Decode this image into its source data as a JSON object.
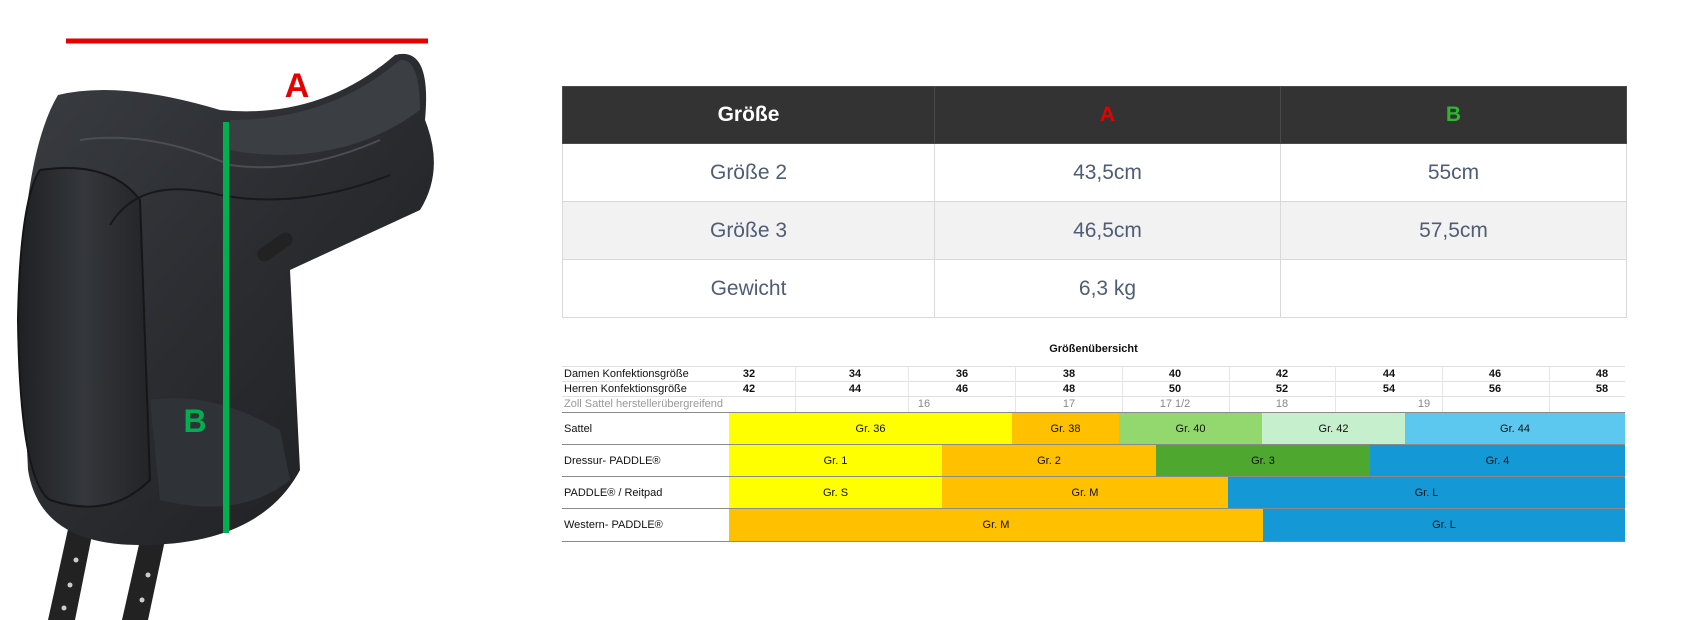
{
  "figure": {
    "label_a": "A",
    "label_b": "B",
    "marker_colors": {
      "a": "#e60000",
      "b": "#00b050"
    }
  },
  "size_table": {
    "headers": [
      "Größe",
      "A",
      "B"
    ],
    "rows": [
      [
        "Größe 2",
        "43,5cm",
        "55cm"
      ],
      [
        "Größe 3",
        "46,5cm",
        "57,5cm"
      ],
      [
        "Gewicht",
        "6,3 kg",
        ""
      ]
    ]
  },
  "overview": {
    "title": "Größenübersicht",
    "damen_label": "Damen Konfektionsgröße",
    "damen_values": [
      "32",
      "34",
      "36",
      "38",
      "40",
      "42",
      "44",
      "46",
      "48"
    ],
    "herren_label": "Herren Konfektionsgröße",
    "herren_values": [
      "42",
      "44",
      "46",
      "48",
      "50",
      "52",
      "54",
      "56",
      "58"
    ],
    "zoll_label": "Zoll Sattel herstellerübergreifend",
    "zoll_values": [
      "16",
      "17",
      "17 1/2",
      "18",
      "19"
    ],
    "bands": [
      {
        "label": "Sattel",
        "segments": [
          {
            "text": "Gr. 36",
            "color": "#ffff00"
          },
          {
            "text": "Gr. 38",
            "color": "#ffc000"
          },
          {
            "text": "Gr. 40",
            "color": "#92d86f"
          },
          {
            "text": "Gr. 42",
            "color": "#c6efce"
          },
          {
            "text": "Gr. 44",
            "color": "#5cc8f0"
          }
        ]
      },
      {
        "label": "Dressur- PADDLE®",
        "segments": [
          {
            "text": "Gr. 1",
            "color": "#ffff00"
          },
          {
            "text": "Gr. 2",
            "color": "#ffc000"
          },
          {
            "text": "Gr. 3",
            "color": "#4ea72e"
          },
          {
            "text": "Gr. 4",
            "color": "#1499d6"
          }
        ]
      },
      {
        "label": " PADDLE® / Reitpad",
        "segments": [
          {
            "text": "Gr. S",
            "color": "#ffff00"
          },
          {
            "text": "Gr. M",
            "color": "#ffc000"
          },
          {
            "text": "Gr. L",
            "color": "#1499d6"
          }
        ]
      },
      {
        "label": "Western- PADDLE®",
        "segments": [
          {
            "text": "Gr. M",
            "color": "#ffc000"
          },
          {
            "text": "Gr. L",
            "color": "#1499d6"
          }
        ]
      }
    ]
  }
}
